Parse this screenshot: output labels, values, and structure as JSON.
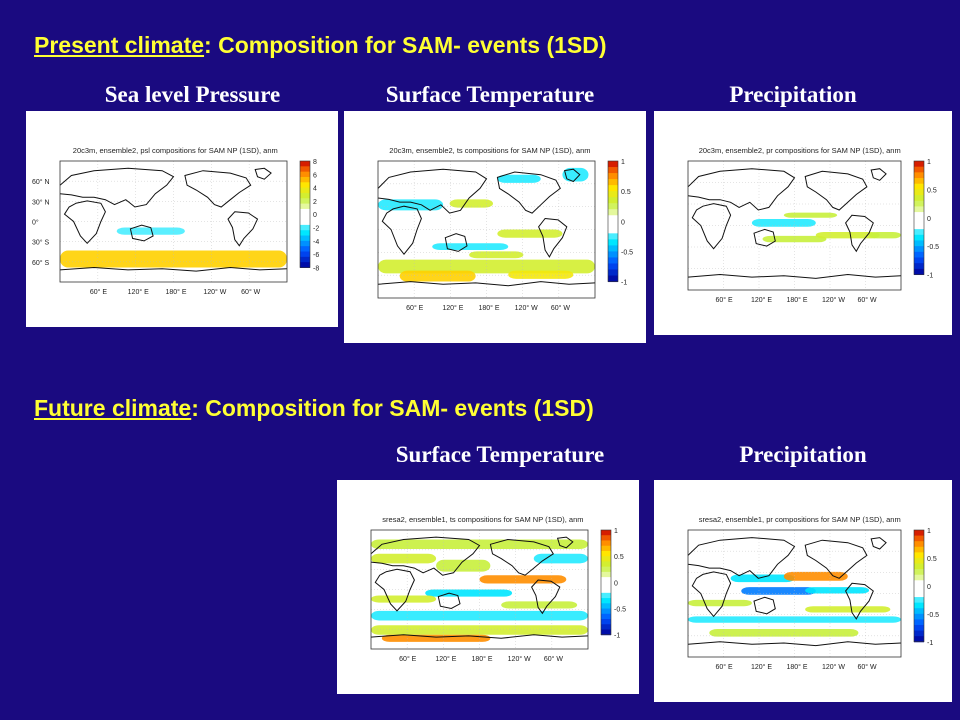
{
  "sections": {
    "present": {
      "underlined": "Present climate",
      "rest": ": Composition for SAM- events (1SD)"
    },
    "future": {
      "underlined": "Future climate",
      "rest": ": Composition for SAM- events (1SD)"
    }
  },
  "columns": {
    "slp": "Sea level Pressure",
    "ts": "Surface Temperature",
    "pr": "Precipitation",
    "ts_future": "Surface Temperature",
    "pr_future": "Precipitation"
  },
  "panels": {
    "p1": {
      "title": "20c3m, ensemble2, psl compositions for SAM NP (1SD), anm",
      "ticks": [
        "8",
        "6",
        "4",
        "2",
        "0",
        "-2",
        "-4",
        "-6",
        "-8"
      ]
    },
    "p2": {
      "title": "20c3m, ensemble2, ts compositions for SAM NP (1SD), anm",
      "ticks": [
        "1",
        "0.5",
        "0",
        "-0.5",
        "-1"
      ]
    },
    "p3": {
      "title": "20c3m, ensemble2, pr compositions for SAM NP (1SD), anm",
      "ticks": [
        "1",
        "0.5",
        "0",
        "-0.5",
        "-1"
      ]
    },
    "p4": {
      "title": "sresa2, ensemble1, ts compositions for SAM NP (1SD), anm",
      "ticks": [
        "1",
        "0.5",
        "0",
        "-0.5",
        "-1"
      ]
    },
    "p5": {
      "title": "sresa2, ensemble1, pr compositions for SAM NP (1SD), anm",
      "ticks": [
        "1",
        "0.5",
        "0",
        "-0.5",
        "-1"
      ]
    }
  },
  "lon_labels": [
    "60° E",
    "120° E",
    "180° E",
    "120° W",
    "60° W"
  ],
  "lat_labels": [
    "60° N",
    "30° N",
    "0°",
    "30° S",
    "60° S"
  ],
  "colors": {
    "background": "#1a0a80",
    "section_title": "#ffff33"
  }
}
